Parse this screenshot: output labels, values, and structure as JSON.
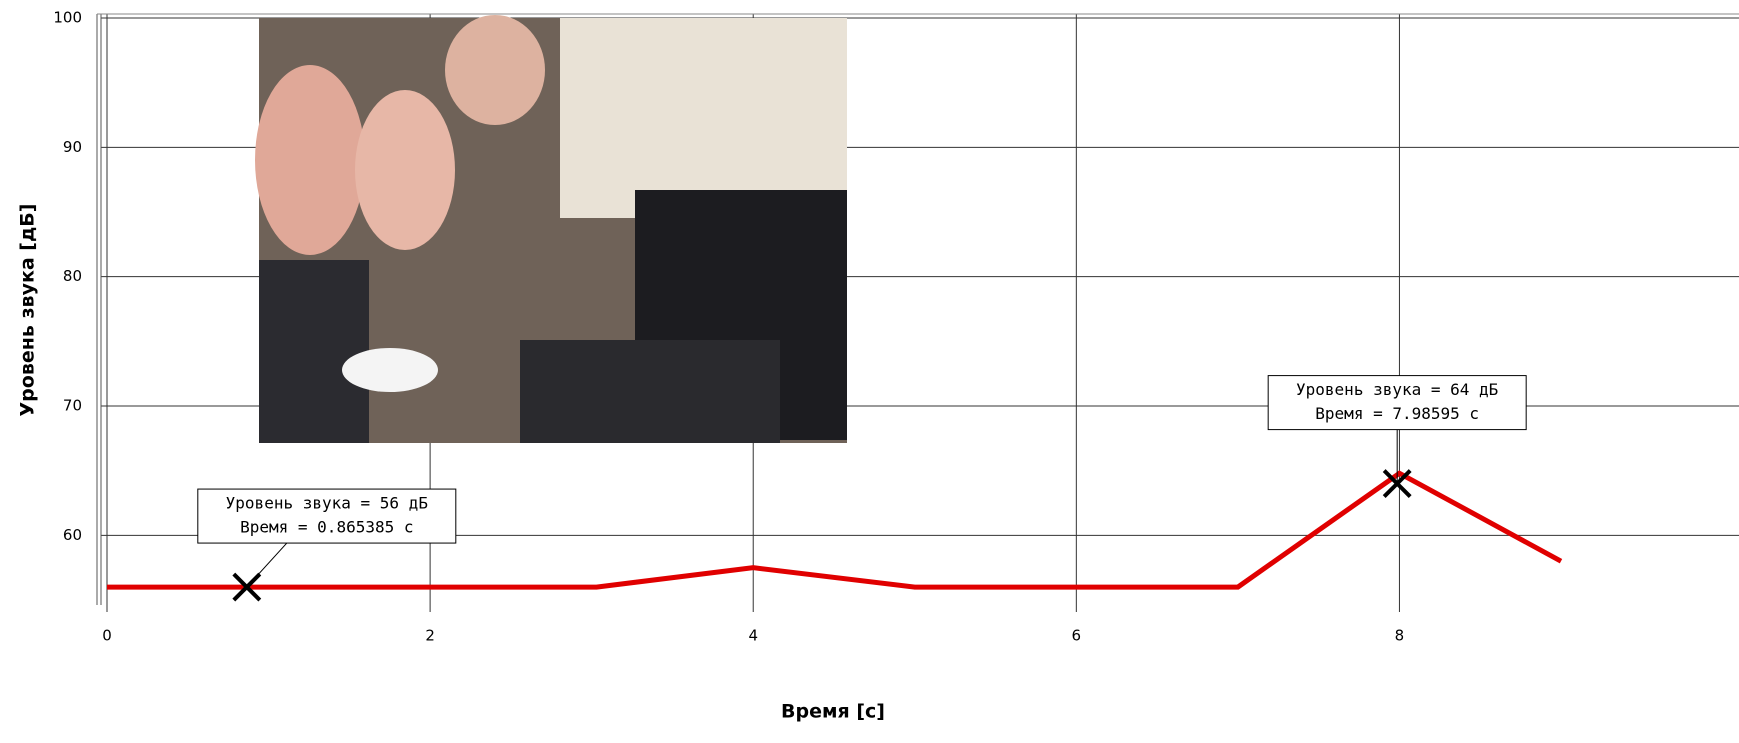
{
  "chart_data": {
    "type": "line",
    "x_label": "Время [с]",
    "y_label": "Уровень звука [дБ]",
    "x": [
      0,
      3.03,
      4,
      5,
      7,
      8,
      9
    ],
    "series": [
      {
        "name": "Уровень звука",
        "color": "#e00000",
        "values": [
          56,
          56,
          57.5,
          56,
          56,
          64.8,
          58
        ]
      }
    ],
    "xlim": [
      0,
      9
    ],
    "ylim": [
      55,
      100
    ],
    "xticks": [
      0,
      2,
      4,
      6,
      8
    ],
    "yticks": [
      60,
      70,
      80,
      90,
      100
    ],
    "grid": true,
    "markers": [
      {
        "x": 0.865385,
        "y": 56,
        "label_lines": [
          "Уровень звука = 56 дБ",
          "Время = 0.865385 с"
        ]
      },
      {
        "x": 7.98595,
        "y": 64,
        "label_lines": [
          "Уровень звука = 64 дБ",
          "Время = 7.98595 с"
        ]
      }
    ]
  }
}
